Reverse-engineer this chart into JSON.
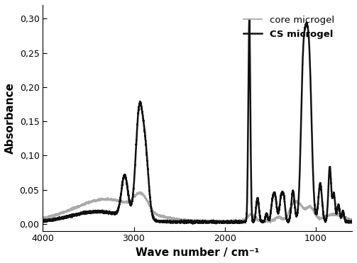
{
  "title": "",
  "xlabel": "Wave number / cm⁻¹",
  "ylabel": "Absorbance",
  "xlim": [
    4000,
    600
  ],
  "ylim": [
    -0.01,
    0.32
  ],
  "yticks": [
    0.0,
    0.05,
    0.1,
    0.15,
    0.2,
    0.25,
    0.3
  ],
  "ytick_labels": [
    "0,00",
    "0,05",
    "0,10",
    "0,15",
    "0,20",
    "0,25",
    "0,30"
  ],
  "xticks": [
    4000,
    3000,
    2000,
    1000
  ],
  "legend_labels": [
    "core microgel",
    "CS microgel"
  ],
  "core_color": "#aaaaaa",
  "cs_color": "#111111",
  "core_linewidth": 1.3,
  "cs_linewidth": 1.8,
  "background_color": "#ffffff"
}
